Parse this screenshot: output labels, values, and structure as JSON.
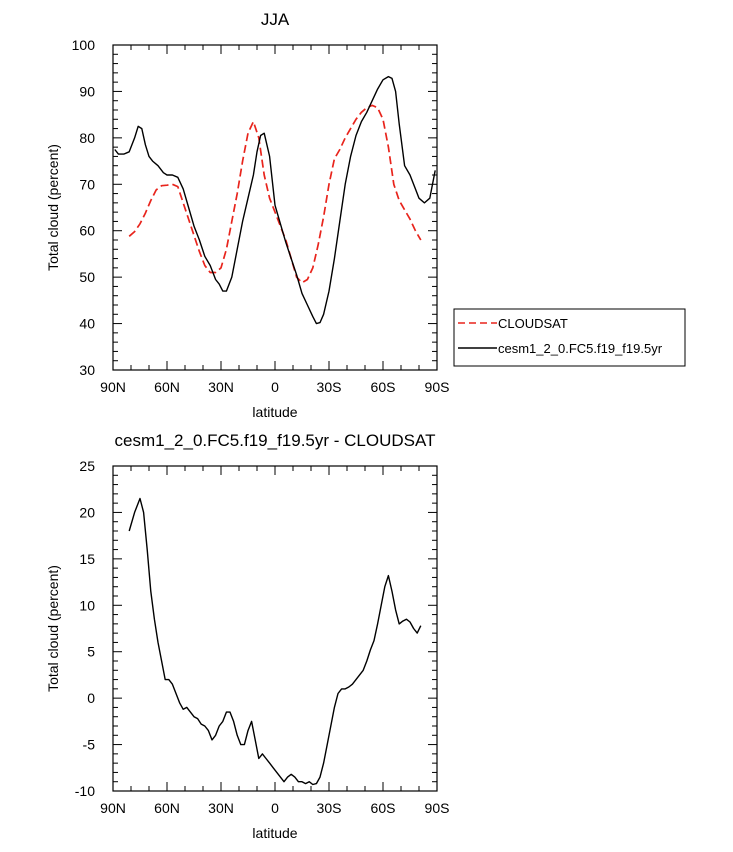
{
  "chart_data": [
    {
      "type": "line",
      "title": "JJA",
      "xlabel": "latitude",
      "ylabel": "Total cloud (percent)",
      "xlim": [
        90,
        -90
      ],
      "ylim": [
        30,
        100
      ],
      "x_ticks": [
        90,
        60,
        30,
        0,
        -30,
        -60,
        -90
      ],
      "x_tick_labels": [
        "90N",
        "60N",
        "30N",
        "0",
        "30S",
        "60S",
        "90S"
      ],
      "y_ticks": [
        30,
        40,
        50,
        60,
        70,
        80,
        90,
        100
      ],
      "y_tick_labels": [
        "30",
        "40",
        "50",
        "60",
        "70",
        "80",
        "90",
        "100"
      ],
      "legend_position": "right",
      "series": [
        {
          "name": "CLOUDSAT",
          "color": "#e8241c",
          "dash": "dashed",
          "x": [
            81,
            78,
            75,
            72,
            69,
            66,
            63,
            60,
            57,
            54,
            51,
            48,
            45,
            42,
            39,
            36,
            33,
            30,
            27,
            24,
            21,
            18,
            15,
            12,
            9,
            6,
            3,
            0,
            -3,
            -6,
            -9,
            -12,
            -15,
            -18,
            -21,
            -24,
            -27,
            -30,
            -33,
            -36,
            -39,
            -42,
            -45,
            -48,
            -51,
            -54,
            -57,
            -60,
            -63,
            -66,
            -69,
            -72,
            -75,
            -78,
            -81
          ],
          "y": [
            58.8,
            59.8,
            61.5,
            63.8,
            66.5,
            68.8,
            69.7,
            69.8,
            70,
            69.5,
            66,
            62.5,
            59,
            55.5,
            52.5,
            51,
            51,
            52,
            56,
            62,
            68,
            75,
            81,
            83.5,
            80,
            72,
            67,
            64,
            61,
            58,
            54,
            50,
            48.8,
            49.5,
            52,
            57,
            63,
            70,
            75.5,
            77.5,
            80,
            82,
            84,
            85.5,
            86.5,
            87,
            86.5,
            84,
            78,
            70,
            66.5,
            64.5,
            62.5,
            60,
            58
          ]
        },
        {
          "name": "cesm1_2_0.FC5.f19_f19.5yr",
          "color": "#000000",
          "dash": "solid",
          "x": [
            89,
            87,
            84,
            81,
            78,
            76,
            74,
            72,
            70,
            68,
            65,
            62,
            60,
            57,
            54,
            51,
            48,
            45,
            42,
            39,
            36,
            33,
            31,
            29,
            27,
            24,
            21,
            18,
            15,
            12,
            10,
            8,
            6,
            3,
            0,
            -3,
            -6,
            -9,
            -12,
            -15,
            -18,
            -21,
            -23,
            -25,
            -27,
            -30,
            -33,
            -36,
            -39,
            -42,
            -45,
            -48,
            -51,
            -54,
            -57,
            -60,
            -63,
            -65,
            -67,
            -69,
            -72,
            -75,
            -78,
            -80,
            -83,
            -86,
            -89
          ],
          "y": [
            77.5,
            76.5,
            76.5,
            77,
            80,
            82.5,
            82,
            78.5,
            76,
            75,
            74,
            72.5,
            72,
            72,
            71.5,
            69,
            65,
            61,
            58,
            54.5,
            52.5,
            49.5,
            48.5,
            47,
            47,
            50,
            56,
            62,
            67,
            72,
            77,
            80.5,
            81,
            76,
            65.5,
            61.5,
            57.5,
            54,
            50.5,
            46.5,
            44,
            41.5,
            40,
            40.2,
            42,
            47,
            54,
            62,
            70,
            76,
            80.5,
            83.5,
            85.5,
            88,
            90.5,
            92.5,
            93.2,
            92.8,
            90,
            83,
            74,
            72,
            69,
            67,
            66,
            67,
            73
          ]
        }
      ]
    },
    {
      "type": "line",
      "title": "cesm1_2_0.FC5.f19_f19.5yr - CLOUDSAT",
      "xlabel": "latitude",
      "ylabel": "Total cloud (percent)",
      "xlim": [
        90,
        -90
      ],
      "ylim": [
        -10,
        25
      ],
      "x_ticks": [
        90,
        60,
        30,
        0,
        -30,
        -60,
        -90
      ],
      "x_tick_labels": [
        "90N",
        "60N",
        "30N",
        "0",
        "30S",
        "60S",
        "90S"
      ],
      "y_ticks": [
        -10,
        -5,
        0,
        5,
        10,
        15,
        20,
        25
      ],
      "y_tick_labels": [
        "-10",
        "-5",
        "0",
        "5",
        "10",
        "15",
        "20",
        "25"
      ],
      "series": [
        {
          "color": "#000000",
          "dash": "solid",
          "x": [
            81,
            78,
            75,
            73,
            71,
            69,
            67,
            65,
            63,
            61,
            59,
            57,
            55,
            53,
            51,
            49,
            47,
            45,
            43,
            41,
            39,
            37,
            35,
            33,
            31,
            29,
            27,
            25,
            23,
            21,
            19,
            17,
            15,
            13,
            11,
            9,
            7,
            5,
            3,
            1,
            -1,
            -3,
            -5,
            -7,
            -9,
            -11,
            -13,
            -15,
            -17,
            -19,
            -21,
            -23,
            -25,
            -27,
            -29,
            -31,
            -33,
            -35,
            -37,
            -39,
            -41,
            -43,
            -45,
            -47,
            -49,
            -51,
            -53,
            -55,
            -57,
            -59,
            -61,
            -63,
            -65,
            -67,
            -69,
            -71,
            -73,
            -75,
            -77,
            -79,
            -81
          ],
          "y": [
            18,
            20,
            21.5,
            20,
            16,
            11.5,
            8.5,
            6,
            4,
            2,
            2,
            1.5,
            0.5,
            -0.5,
            -1.2,
            -1,
            -1.5,
            -2,
            -2.2,
            -2.8,
            -3,
            -3.5,
            -4.5,
            -4,
            -3,
            -2.5,
            -1.5,
            -1.5,
            -2.5,
            -4,
            -5,
            -5,
            -3.5,
            -2.5,
            -4.5,
            -6.5,
            -6,
            -6.5,
            -7,
            -7.5,
            -8,
            -8.5,
            -9,
            -8.5,
            -8.2,
            -8.5,
            -9,
            -9,
            -9.2,
            -9,
            -9.3,
            -9.2,
            -8.5,
            -7,
            -5,
            -3,
            -1,
            0.5,
            1,
            1,
            1.2,
            1.5,
            2,
            2.5,
            3,
            4,
            5.2,
            6.2,
            8,
            10,
            12,
            13.2,
            11.5,
            9.5,
            8,
            8.3,
            8.5,
            8.2,
            7.5,
            7,
            7.8
          ]
        }
      ]
    }
  ]
}
